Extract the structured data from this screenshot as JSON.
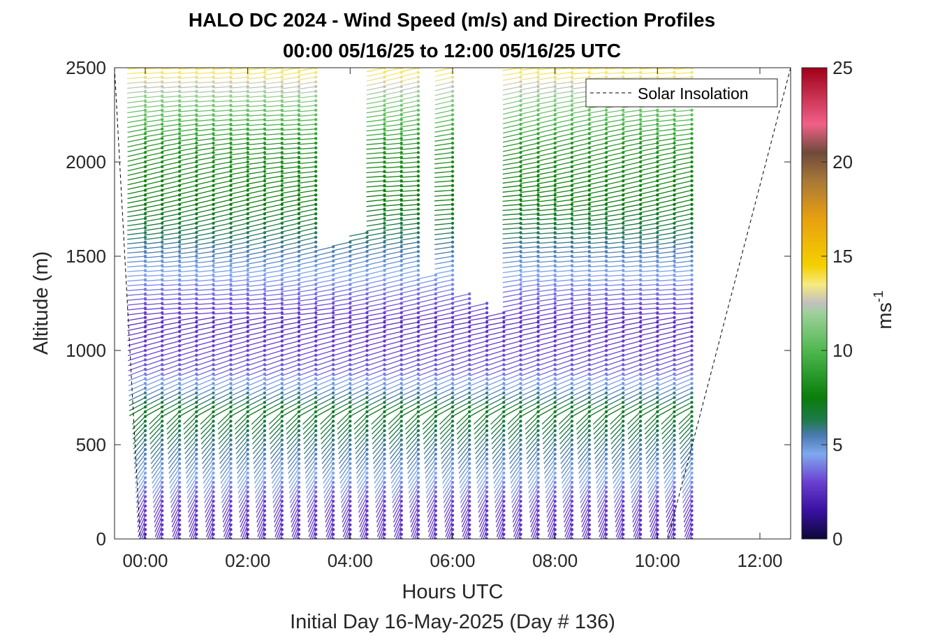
{
  "chart_data": {
    "type": "quiver",
    "title": "HALO DC 2024 - Wind Speed (m/s) and Direction Profiles",
    "subtitle": "00:00 05/16/25 to 12:00 05/16/25  UTC",
    "xlabel": "Hours UTC",
    "xlabel2": "Initial Day 16-May-2025 (Day # 136)",
    "ylabel": "Altitude (m)",
    "xlim_hours": [
      -0.6,
      12.6
    ],
    "ylim": [
      0,
      2500
    ],
    "xticks": [
      0,
      2,
      4,
      6,
      8,
      10,
      12
    ],
    "xtick_labels": [
      "00:00",
      "02:00",
      "04:00",
      "06:00",
      "08:00",
      "10:00",
      "12:00"
    ],
    "yticks": [
      0,
      500,
      1000,
      1500,
      2000,
      2500
    ],
    "ytick_labels": [
      "0",
      "500",
      "1000",
      "1500",
      "2000",
      "2500"
    ],
    "legend": {
      "entries": [
        "Solar Insolation"
      ],
      "location": "top-right",
      "style": "dashed black"
    },
    "colorbar": {
      "label": "ms",
      "label_superscript": "-1",
      "range": [
        0,
        25
      ],
      "ticks": [
        0,
        5,
        10,
        15,
        20,
        25
      ],
      "tick_labels": [
        "0",
        "5",
        "10",
        "15",
        "20",
        "25"
      ],
      "colors": [
        {
          "v": 0,
          "c": "#0c0838"
        },
        {
          "v": 1.5,
          "c": "#3a10a0"
        },
        {
          "v": 3,
          "c": "#6a3fd0"
        },
        {
          "v": 4.5,
          "c": "#7fa8f0"
        },
        {
          "v": 5.5,
          "c": "#4a7ab0"
        },
        {
          "v": 6.3,
          "c": "#1e7a4a"
        },
        {
          "v": 7.5,
          "c": "#0a7d0a"
        },
        {
          "v": 10,
          "c": "#4fb84f"
        },
        {
          "v": 12,
          "c": "#a0d09c"
        },
        {
          "v": 12.5,
          "c": "#c0c0c0"
        },
        {
          "v": 13.5,
          "c": "#f6ea80"
        },
        {
          "v": 14.5,
          "c": "#f5d000"
        },
        {
          "v": 17,
          "c": "#e8a010"
        },
        {
          "v": 19,
          "c": "#a87838"
        },
        {
          "v": 20.5,
          "c": "#6e4a3a"
        },
        {
          "v": 22,
          "c": "#f06088"
        },
        {
          "v": 25,
          "c": "#a00018"
        }
      ]
    },
    "solar_insolation_hours": [
      [
        -0.6,
        2500
      ],
      [
        -0.1,
        0
      ],
      [
        10.2,
        0
      ],
      [
        12.6,
        2500
      ]
    ],
    "profiles": {
      "times_hours": [
        0.0,
        0.33,
        0.67,
        1.0,
        1.33,
        1.67,
        2.0,
        2.33,
        2.67,
        3.0,
        3.33,
        3.67,
        4.0,
        4.33,
        4.67,
        5.0,
        5.33,
        5.67,
        6.0,
        6.33,
        6.67,
        7.0,
        7.33,
        7.67,
        8.0,
        8.33,
        8.67,
        9.0,
        9.33,
        9.67,
        10.0,
        10.33,
        10.67
      ],
      "top_m": [
        2500,
        2500,
        2500,
        2500,
        2500,
        2500,
        2500,
        2500,
        2500,
        2500,
        2500,
        1570,
        1580,
        1640,
        2500,
        2500,
        2500,
        1420,
        2500,
        1300,
        1250,
        1220,
        2500,
        2500,
        2500,
        2500,
        2500,
        2500,
        2500,
        2500,
        2500,
        2500,
        2500
      ],
      "altitude_step_m": 25,
      "speed_by_altitude_ms": [
        {
          "alt": 0,
          "speed": 2.5
        },
        {
          "alt": 200,
          "speed": 3.0
        },
        {
          "alt": 400,
          "speed": 5.0
        },
        {
          "alt": 700,
          "speed": 7.0
        },
        {
          "alt": 900,
          "speed": 3.5
        },
        {
          "alt": 1150,
          "speed": 2.5
        },
        {
          "alt": 1350,
          "speed": 4.0
        },
        {
          "alt": 1600,
          "speed": 6.0
        },
        {
          "alt": 1800,
          "speed": 7.5
        },
        {
          "alt": 2100,
          "speed": 8.5
        },
        {
          "alt": 2300,
          "speed": 11.0
        },
        {
          "alt": 2500,
          "speed": 14.0
        }
      ]
    }
  }
}
